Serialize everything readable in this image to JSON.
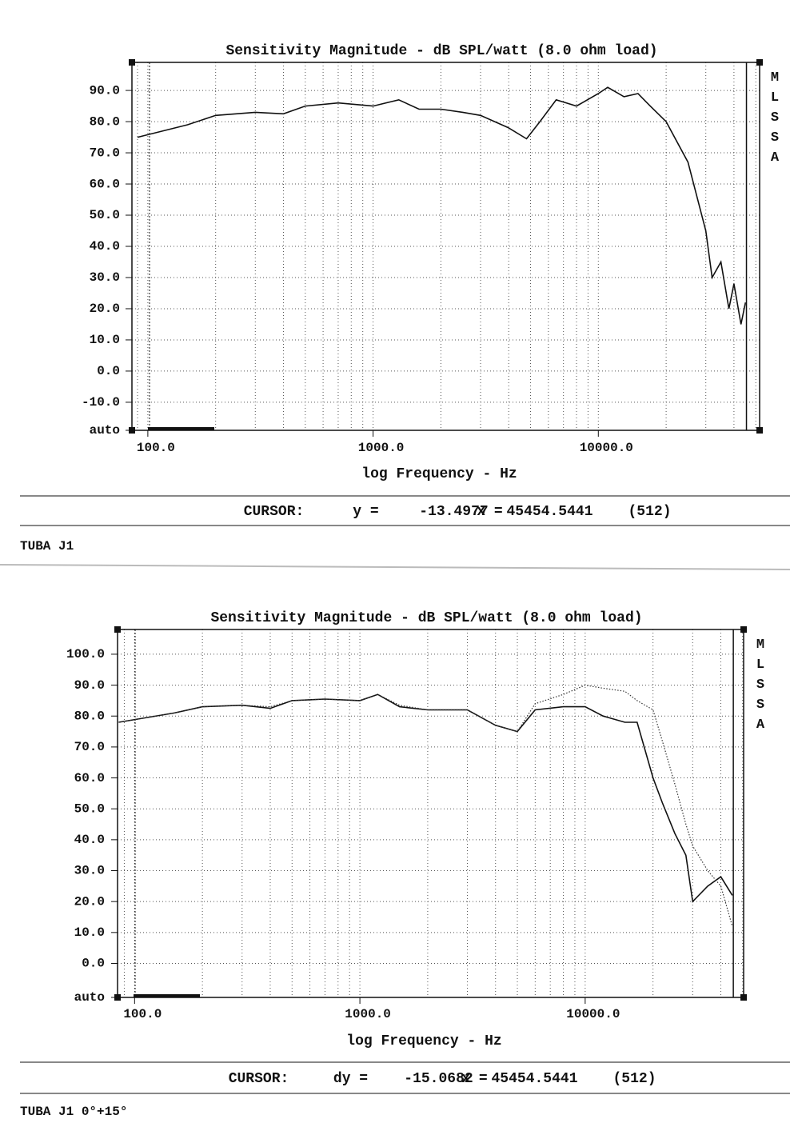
{
  "chart_data": [
    {
      "type": "line",
      "title": "Sensitivity Magnitude - dB SPL/watt (8.0 ohm load)",
      "x_label": "log Frequency - Hz",
      "side_label": "MLSSA",
      "x_scale": "log",
      "grid": true,
      "color": "#111111",
      "x": [
        90,
        150,
        200,
        300,
        400,
        500,
        700,
        1000,
        1300,
        1600,
        2000,
        2500,
        3000,
        4000,
        4800,
        5500,
        6500,
        8000,
        10000,
        11000,
        13000,
        15000,
        17000,
        20000,
        25000,
        30000,
        32000,
        35000,
        38000,
        40000,
        43000,
        45000
      ],
      "values": [
        75,
        79,
        82,
        83,
        82.5,
        85,
        86,
        85,
        87,
        84,
        84,
        83,
        82,
        78,
        74.5,
        80,
        87,
        85,
        89,
        91,
        88,
        89,
        85,
        80,
        67,
        45,
        30,
        35,
        20,
        28,
        15,
        22
      ],
      "xlim": [
        85,
        52000
      ],
      "xticks": [
        {
          "value": 100,
          "label": "100.0"
        },
        {
          "value": 1000,
          "label": "1000.0"
        },
        {
          "value": 10000,
          "label": "10000.0"
        }
      ],
      "ylim": [
        -19,
        99
      ],
      "yticks": [
        {
          "value": -19,
          "label": "auto"
        },
        {
          "value": -10,
          "label": "-10.0"
        },
        {
          "value": 0,
          "label": "0.0"
        },
        {
          "value": 10,
          "label": "10.0"
        },
        {
          "value": 20,
          "label": "20.0"
        },
        {
          "value": 30,
          "label": "30.0"
        },
        {
          "value": 40,
          "label": "40.0"
        },
        {
          "value": 50,
          "label": "50.0"
        },
        {
          "value": 60,
          "label": "60.0"
        },
        {
          "value": 70,
          "label": "70.0"
        },
        {
          "value": 80,
          "label": "80.0"
        },
        {
          "value": 90,
          "label": "90.0"
        }
      ],
      "cursor": {
        "label": "CURSOR:",
        "y_label": "y =",
        "y": -13.4977,
        "x_label": "x =",
        "x": 45454.5441,
        "index_label": "(512)"
      },
      "caption": "TUBA J1"
    },
    {
      "type": "line",
      "title": "Sensitivity Magnitude - dB SPL/watt (8.0 ohm load)",
      "x_label": "log Frequency - Hz",
      "side_label": "MLSSA",
      "x_scale": "log",
      "grid": true,
      "x": [
        85,
        150,
        200,
        300,
        400,
        500,
        700,
        1000,
        1200,
        1500,
        2000,
        3000,
        4000,
        5000,
        6000,
        8000,
        10000,
        12000,
        15000,
        17000,
        20000,
        22000,
        25000,
        28000,
        30000,
        35000,
        40000,
        45000
      ],
      "series": [
        {
          "color": "#111111",
          "dash": "solid",
          "values": [
            78,
            81,
            83,
            83.5,
            82.5,
            85,
            85.5,
            85,
            87,
            83,
            82,
            82,
            77,
            75,
            82,
            83,
            83,
            80,
            78,
            78,
            60,
            52,
            42,
            35,
            20,
            25,
            28,
            22
          ]
        },
        {
          "color": "#333333",
          "dash": "dotted",
          "values": [
            78,
            81,
            83,
            83.5,
            83,
            85,
            85.5,
            85,
            87,
            83.5,
            82,
            82,
            77,
            75,
            84,
            87,
            90,
            89,
            88,
            85,
            82,
            72,
            58,
            45,
            38,
            30,
            25,
            12
          ]
        }
      ],
      "xlim": [
        84,
        50500
      ],
      "xticks": [
        {
          "value": 100,
          "label": "100.0"
        },
        {
          "value": 1000,
          "label": "1000.0"
        },
        {
          "value": 10000,
          "label": "10000.0"
        }
      ],
      "ylim": [
        -11,
        108
      ],
      "yticks": [
        {
          "value": -11,
          "label": "auto"
        },
        {
          "value": 0,
          "label": "0.0"
        },
        {
          "value": 10,
          "label": "10.0"
        },
        {
          "value": 20,
          "label": "20.0"
        },
        {
          "value": 30,
          "label": "30.0"
        },
        {
          "value": 40,
          "label": "40.0"
        },
        {
          "value": 50,
          "label": "50.0"
        },
        {
          "value": 60,
          "label": "60.0"
        },
        {
          "value": 70,
          "label": "70.0"
        },
        {
          "value": 80,
          "label": "80.0"
        },
        {
          "value": 90,
          "label": "90.0"
        },
        {
          "value": 100,
          "label": "100.0"
        }
      ],
      "cursor": {
        "label": "CURSOR:",
        "y_label": "dy =",
        "y": -15.0682,
        "x_label": "x =",
        "x": 45454.5441,
        "index_label": "(512)"
      },
      "caption": "TUBA J1 0°+15°"
    }
  ]
}
